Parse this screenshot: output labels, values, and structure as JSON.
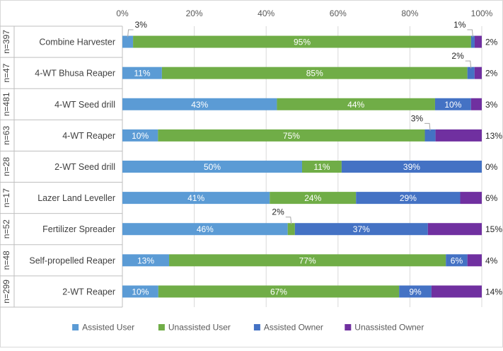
{
  "chart_data": {
    "type": "bar",
    "orientation": "horizontal",
    "stacked": "100%",
    "xlim": [
      0,
      100
    ],
    "x_ticks": [
      "0%",
      "20%",
      "40%",
      "60%",
      "80%",
      "100%"
    ],
    "x_axis_position": "top",
    "grid": true,
    "legend_position": "bottom",
    "categories": [
      "Combine Harvester",
      "4-WT Bhusa Reaper",
      "4-WT Seed drill",
      "4-WT Reaper",
      "2-WT Seed drill",
      "Lazer Land Leveller",
      "Fertilizer Spreader",
      "Self-propelled Reaper",
      "2-WT Reaper"
    ],
    "sample_sizes": [
      "n=397",
      "n=47",
      "n=481",
      "n=63",
      "n=28",
      "n=17",
      "n=52",
      "n=48",
      "n=299"
    ],
    "series": [
      {
        "name": "Assisted User",
        "color": "#5b9bd5",
        "values": [
          3,
          11,
          43,
          10,
          50,
          41,
          46,
          13,
          10
        ],
        "labels": [
          "3%",
          "11%",
          "43%",
          "10%",
          "50%",
          "41%",
          "46%",
          "13%",
          "10%"
        ]
      },
      {
        "name": "Unassisted User",
        "color": "#70ad47",
        "values": [
          95,
          85,
          44,
          75,
          11,
          24,
          2,
          77,
          67
        ],
        "labels": [
          "95%",
          "85%",
          "44%",
          "75%",
          "11%",
          "24%",
          "2%",
          "77%",
          "67%"
        ]
      },
      {
        "name": "Assisted Owner",
        "color": "#4472c4",
        "values": [
          1,
          2,
          10,
          3,
          39,
          29,
          37,
          6,
          9
        ],
        "labels": [
          "1%",
          "2%",
          "10%",
          "3%",
          "39%",
          "29%",
          "37%",
          "6%",
          "9%"
        ]
      },
      {
        "name": "Unassisted Owner",
        "color": "#7030a0",
        "values": [
          2,
          2,
          3,
          13,
          0,
          6,
          15,
          4,
          14
        ],
        "labels": [
          "2%",
          "2%",
          "3%",
          "13%",
          "0%",
          "6%",
          "15%",
          "4%",
          "14%"
        ]
      }
    ]
  }
}
